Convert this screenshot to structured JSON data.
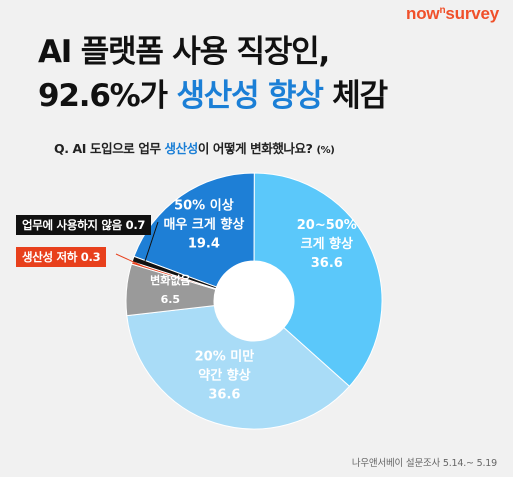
{
  "brand": {
    "logo_main": "now",
    "logo_sup": "n",
    "logo_end": "survey"
  },
  "headline": {
    "line1": "AI 플랫폼 사용 직장인,",
    "line2_plain": "92.6%가 ",
    "line2_accent": "생산성 향상",
    "line2_end": " 체감"
  },
  "question": {
    "prefix": "Q. AI 도입으로 업무 ",
    "accent": "생산성",
    "suffix": "이 어떻게 변화했나요? ",
    "unit": "(%)"
  },
  "chart_data": {
    "type": "pie",
    "donut": true,
    "categories": [
      "50% 이상 매우 크게 향상",
      "20~50% 크게 향상",
      "20% 미만 약간 향상",
      "변화없음",
      "생산성 저하",
      "업무에 사용하지 않음"
    ],
    "values": [
      19.4,
      36.6,
      36.6,
      6.5,
      0.3,
      0.7
    ],
    "colors": {
      "50% 이상 매우 크게 향상": "#1e7fd6",
      "20~50% 크게 향상": "#5bc8fa",
      "20% 미만 약간 향상": "#a9dcf7",
      "변화없음": "#9a9a9a",
      "생산성 저하": "#e8401c",
      "업무에 사용하지 않음": "#111111"
    },
    "labels": {
      "very_high": {
        "line1": "50% 이상",
        "line2": "매우 크게 향상",
        "value": "19.4"
      },
      "high": {
        "line1": "20~50%",
        "line2": "크게 향상",
        "value": "36.6"
      },
      "slight": {
        "line1": "20% 미만",
        "line2": "약간 향상",
        "value": "36.6"
      },
      "no_change": {
        "line1": "변화없음",
        "value": "6.5"
      }
    },
    "callouts": {
      "not_used": "업무에 사용하지 않음 0.7",
      "decrease": "생산성 저하 0.3"
    }
  },
  "source": "나우앤서베이 설문조사 5.14.~ 5.19"
}
